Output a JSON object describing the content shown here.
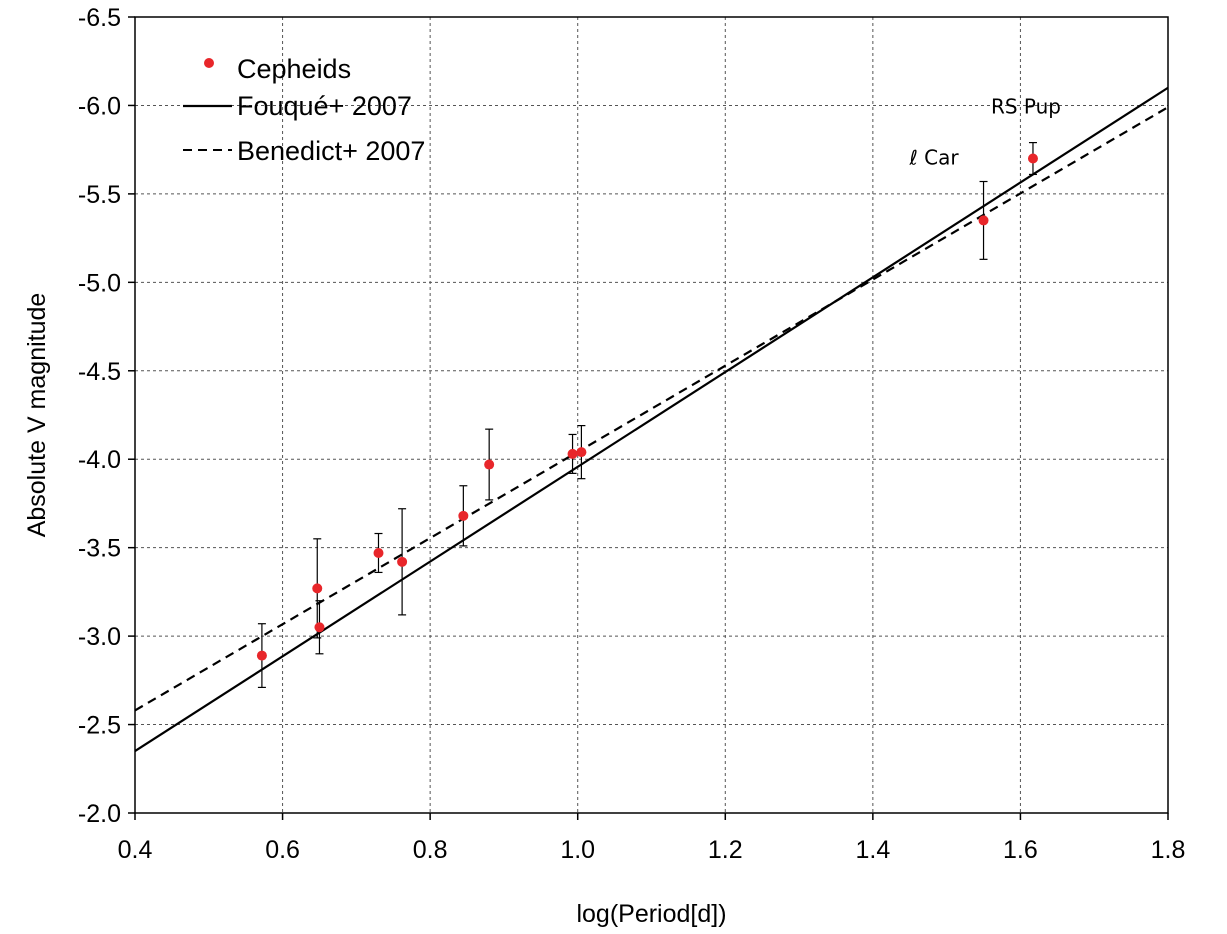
{
  "chart_data": {
    "type": "scatter",
    "xlabel": "log(Period[d])",
    "ylabel": "Absolute V magnitude",
    "xlim": [
      0.4,
      1.8
    ],
    "ylim": [
      -2.0,
      -6.5
    ],
    "y_inverted": true,
    "x_ticks": [
      0.4,
      0.6,
      0.8,
      1.0,
      1.2,
      1.4,
      1.6,
      1.8
    ],
    "x_tick_labels": [
      "0.4",
      "0.6",
      "0.8",
      "1.0",
      "1.2",
      "1.4",
      "1.6",
      "1.8"
    ],
    "y_ticks": [
      -2.0,
      -2.5,
      -3.0,
      -3.5,
      -4.0,
      -4.5,
      -5.0,
      -5.5,
      -6.0,
      -6.5
    ],
    "y_tick_labels": [
      "-2.0",
      "-2.5",
      "-3.0",
      "-3.5",
      "-4.0",
      "-4.5",
      "-5.0",
      "-5.5",
      "-6.0",
      "-6.5"
    ],
    "grid": true,
    "legend_position": "top-left",
    "series": [
      {
        "name": "Cepheids",
        "kind": "points",
        "color": "#e8262a",
        "x": [
          0.572,
          0.647,
          0.65,
          0.73,
          0.762,
          0.845,
          0.88,
          0.993,
          1.005,
          1.55,
          1.617
        ],
        "y": [
          -2.89,
          -3.27,
          -3.05,
          -3.47,
          -3.42,
          -3.68,
          -3.97,
          -4.03,
          -4.04,
          -5.35,
          -5.7
        ],
        "err": [
          0.18,
          0.28,
          0.15,
          0.11,
          0.3,
          0.17,
          0.2,
          0.11,
          0.15,
          0.22,
          0.09
        ]
      },
      {
        "name": "Fouqué+ 2007",
        "kind": "line",
        "style": "solid",
        "x": [
          0.4,
          1.8
        ],
        "y": [
          -2.35,
          -6.1
        ]
      },
      {
        "name": "Benedict+ 2007",
        "kind": "line",
        "style": "dashed",
        "x": [
          0.4,
          1.8
        ],
        "y": [
          -2.58,
          -5.99
        ]
      }
    ],
    "annotations": [
      {
        "text": "ℓ Car",
        "x": 1.55,
        "y": -5.35
      },
      {
        "text": "RS Pup",
        "x": 1.617,
        "y": -5.7
      }
    ]
  }
}
